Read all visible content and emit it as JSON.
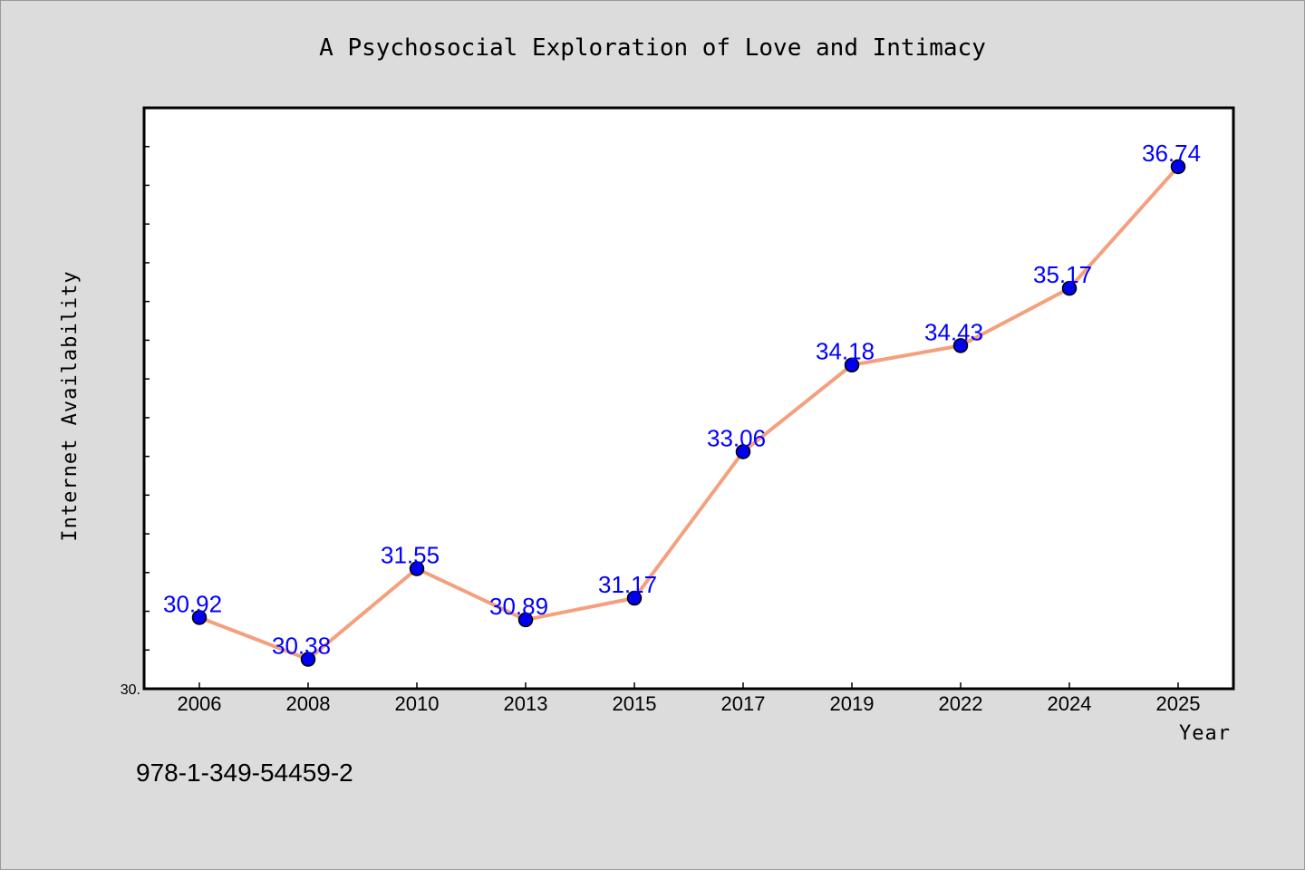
{
  "chart_data": {
    "type": "line",
    "title": "A Psychosocial Exploration of Love and Intimacy",
    "xlabel": "Year",
    "ylabel": "Internet Availability",
    "categories": [
      "2006",
      "2008",
      "2010",
      "2013",
      "2015",
      "2017",
      "2019",
      "2022",
      "2024",
      "2025"
    ],
    "series": [
      {
        "values": [
          30.92,
          30.38,
          31.55,
          30.89,
          31.17,
          33.06,
          34.18,
          34.43,
          35.17,
          36.74
        ],
        "labels": [
          "30.92",
          "30.38",
          "31.55",
          "30.89",
          "31.17",
          "33.06",
          "34.18",
          "34.43",
          "35.17",
          "36.74"
        ],
        "line_color": "#f4a07e",
        "marker_color": "#0000ee",
        "label_color": "#0000ff"
      }
    ],
    "ylim": [
      30,
      37.5
    ],
    "y_min_label": "30.",
    "grid": false,
    "legend": "none"
  },
  "annotation": {
    "isbn": "978-1-349-54459-2"
  },
  "colors": {
    "background": "#dcdcdc",
    "plot_area": "#ffffff"
  }
}
